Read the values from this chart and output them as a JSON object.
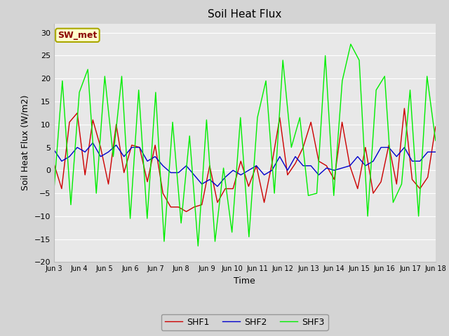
{
  "title": "Soil Heat Flux",
  "xlabel": "Time",
  "ylabel": "Soil Heat Flux (W/m2)",
  "ylim": [
    -20,
    32
  ],
  "yticks": [
    -20,
    -15,
    -10,
    -5,
    0,
    5,
    10,
    15,
    20,
    25,
    30
  ],
  "fig_bg": "#d4d4d4",
  "plot_bg": "#e8e8e8",
  "annotation_text": "SW_met",
  "annotation_box_color": "#ffffcc",
  "annotation_text_color": "#8b0000",
  "annotation_border_color": "#aaa800",
  "line_colors": [
    "#cc0000",
    "#0000cc",
    "#00ee00"
  ],
  "line_labels": [
    "SHF1",
    "SHF2",
    "SHF3"
  ],
  "x_tick_labels": [
    "Jun 3",
    "Jun 4",
    "Jun 5",
    "Jun 6",
    "Jun 7",
    "Jun 8",
    "Jun 9",
    "Jun 10",
    "Jun 11",
    "Jun 12",
    "Jun 13",
    "Jun 14",
    "Jun 15",
    "Jun 16",
    "Jun 17",
    "Jun 18"
  ],
  "shf1_y": [
    1.5,
    -4,
    10.5,
    12.5,
    -1,
    11,
    5,
    -3,
    10,
    -0.5,
    5.5,
    5,
    -2.5,
    5.5,
    -5,
    -8,
    -8,
    -9,
    -8,
    -7.5,
    1,
    -7,
    -4,
    -4,
    2,
    -3.5,
    1,
    -7,
    1.5,
    11.5,
    -1,
    1.5,
    5,
    10.5,
    2,
    1,
    -2,
    10.5,
    1,
    -4,
    5,
    -5,
    -2.5,
    5.5,
    -3,
    13.5,
    -2,
    -4,
    -1.5,
    9.5
  ],
  "shf2_y": [
    4.5,
    2,
    3,
    5,
    4,
    6,
    3,
    4,
    5.5,
    3,
    5,
    5,
    2,
    3,
    1,
    -0.5,
    -0.5,
    1,
    -1,
    -3,
    -2,
    -3.5,
    -1.5,
    0,
    -1,
    0,
    1,
    -1,
    0,
    3,
    0,
    3,
    1,
    1,
    -1,
    0.5,
    0,
    0.5,
    1,
    3,
    1,
    2,
    5,
    5,
    3,
    5,
    2,
    2,
    4,
    4
  ],
  "shf3_y": [
    -4.5,
    19.5,
    -7.5,
    17,
    22,
    -5,
    20.5,
    3,
    20.5,
    -10.5,
    17.5,
    -10.5,
    17,
    -15.5,
    10.5,
    -11.5,
    7.5,
    -16.5,
    11,
    -15.5,
    0.5,
    -13.5,
    11.5,
    -14.5,
    11.5,
    19.5,
    -5,
    24,
    5,
    11.5,
    -5.5,
    -5,
    25,
    -5.5,
    19.5,
    27.5,
    24,
    -10,
    17.5,
    20.5,
    -7,
    -3,
    17.5,
    -10,
    20.5,
    6.5
  ],
  "n_shf1": 50,
  "n_shf2": 50,
  "n_shf3": 46
}
